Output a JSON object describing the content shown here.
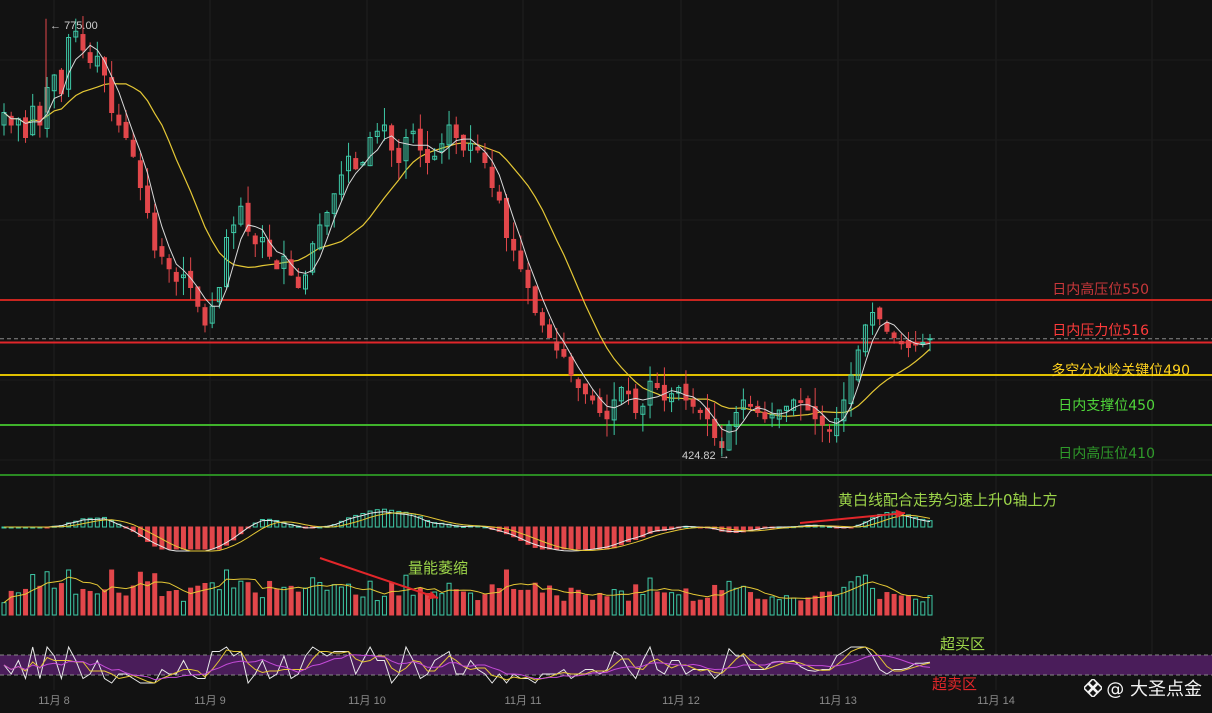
{
  "chart_data": {
    "type": "candlestick",
    "x_ticks": [
      "11月 8",
      "11月 9",
      "11月 10",
      "11月 11",
      "11月 12",
      "11月 13",
      "11月 14"
    ],
    "price_range": [
      390,
      790
    ],
    "levels": [
      {
        "label": "日内高压位550",
        "value": 550,
        "color": "#c8251f",
        "label_color": "#c8373a"
      },
      {
        "label": "日内压力位516",
        "value": 516,
        "color": "#e0262a",
        "label_color": "#ff3b3b"
      },
      {
        "label": "多空分水岭关键位490",
        "value": 490,
        "color": "#e0c000",
        "label_color": "#ffd21f"
      },
      {
        "label": "日内支撑位450",
        "value": 450,
        "color": "#3fb22b",
        "label_color": "#4fd63a"
      },
      {
        "label": "日内高压位410",
        "value": 410,
        "color": "#2a8a22",
        "label_color": "#2f9a2a"
      }
    ],
    "current_price_dashed": 519,
    "high_marker": {
      "value": "775.00",
      "prefix": "←"
    },
    "low_marker": {
      "value": "424.82",
      "suffix": "→"
    },
    "annotations": {
      "macd": "黄白线配合走势匀速上升0轴上方",
      "volume": "量能萎缩",
      "overbought": "超买区",
      "oversold": "超卖区"
    },
    "closes": [
      700,
      690,
      695,
      680,
      705,
      690,
      720,
      730,
      715,
      760,
      765,
      750,
      740,
      745,
      730,
      700,
      690,
      680,
      665,
      640,
      620,
      590,
      585,
      575,
      565,
      570,
      560,
      545,
      530,
      545,
      560,
      600,
      610,
      625,
      605,
      595,
      600,
      585,
      575,
      585,
      570,
      560,
      570,
      595,
      610,
      620,
      635,
      650,
      665,
      655,
      660,
      680,
      685,
      690,
      670,
      660,
      680,
      685,
      670,
      660,
      665,
      675,
      690,
      680,
      670,
      675,
      670,
      660,
      640,
      630,
      600,
      590,
      575,
      560,
      540,
      530,
      520,
      510,
      505,
      490,
      480,
      475,
      470,
      460,
      455,
      470,
      480,
      475,
      460,
      465,
      485,
      480,
      470,
      475,
      480,
      470,
      465,
      460,
      455,
      440,
      432,
      450,
      460,
      470,
      465,
      460,
      455,
      458,
      462,
      465,
      470,
      468,
      462,
      455,
      450,
      445,
      455,
      470,
      490,
      510,
      530,
      540,
      535,
      525,
      520,
      515,
      512,
      514,
      516,
      519
    ]
  },
  "brand": {
    "name": "@ 大圣点金"
  }
}
